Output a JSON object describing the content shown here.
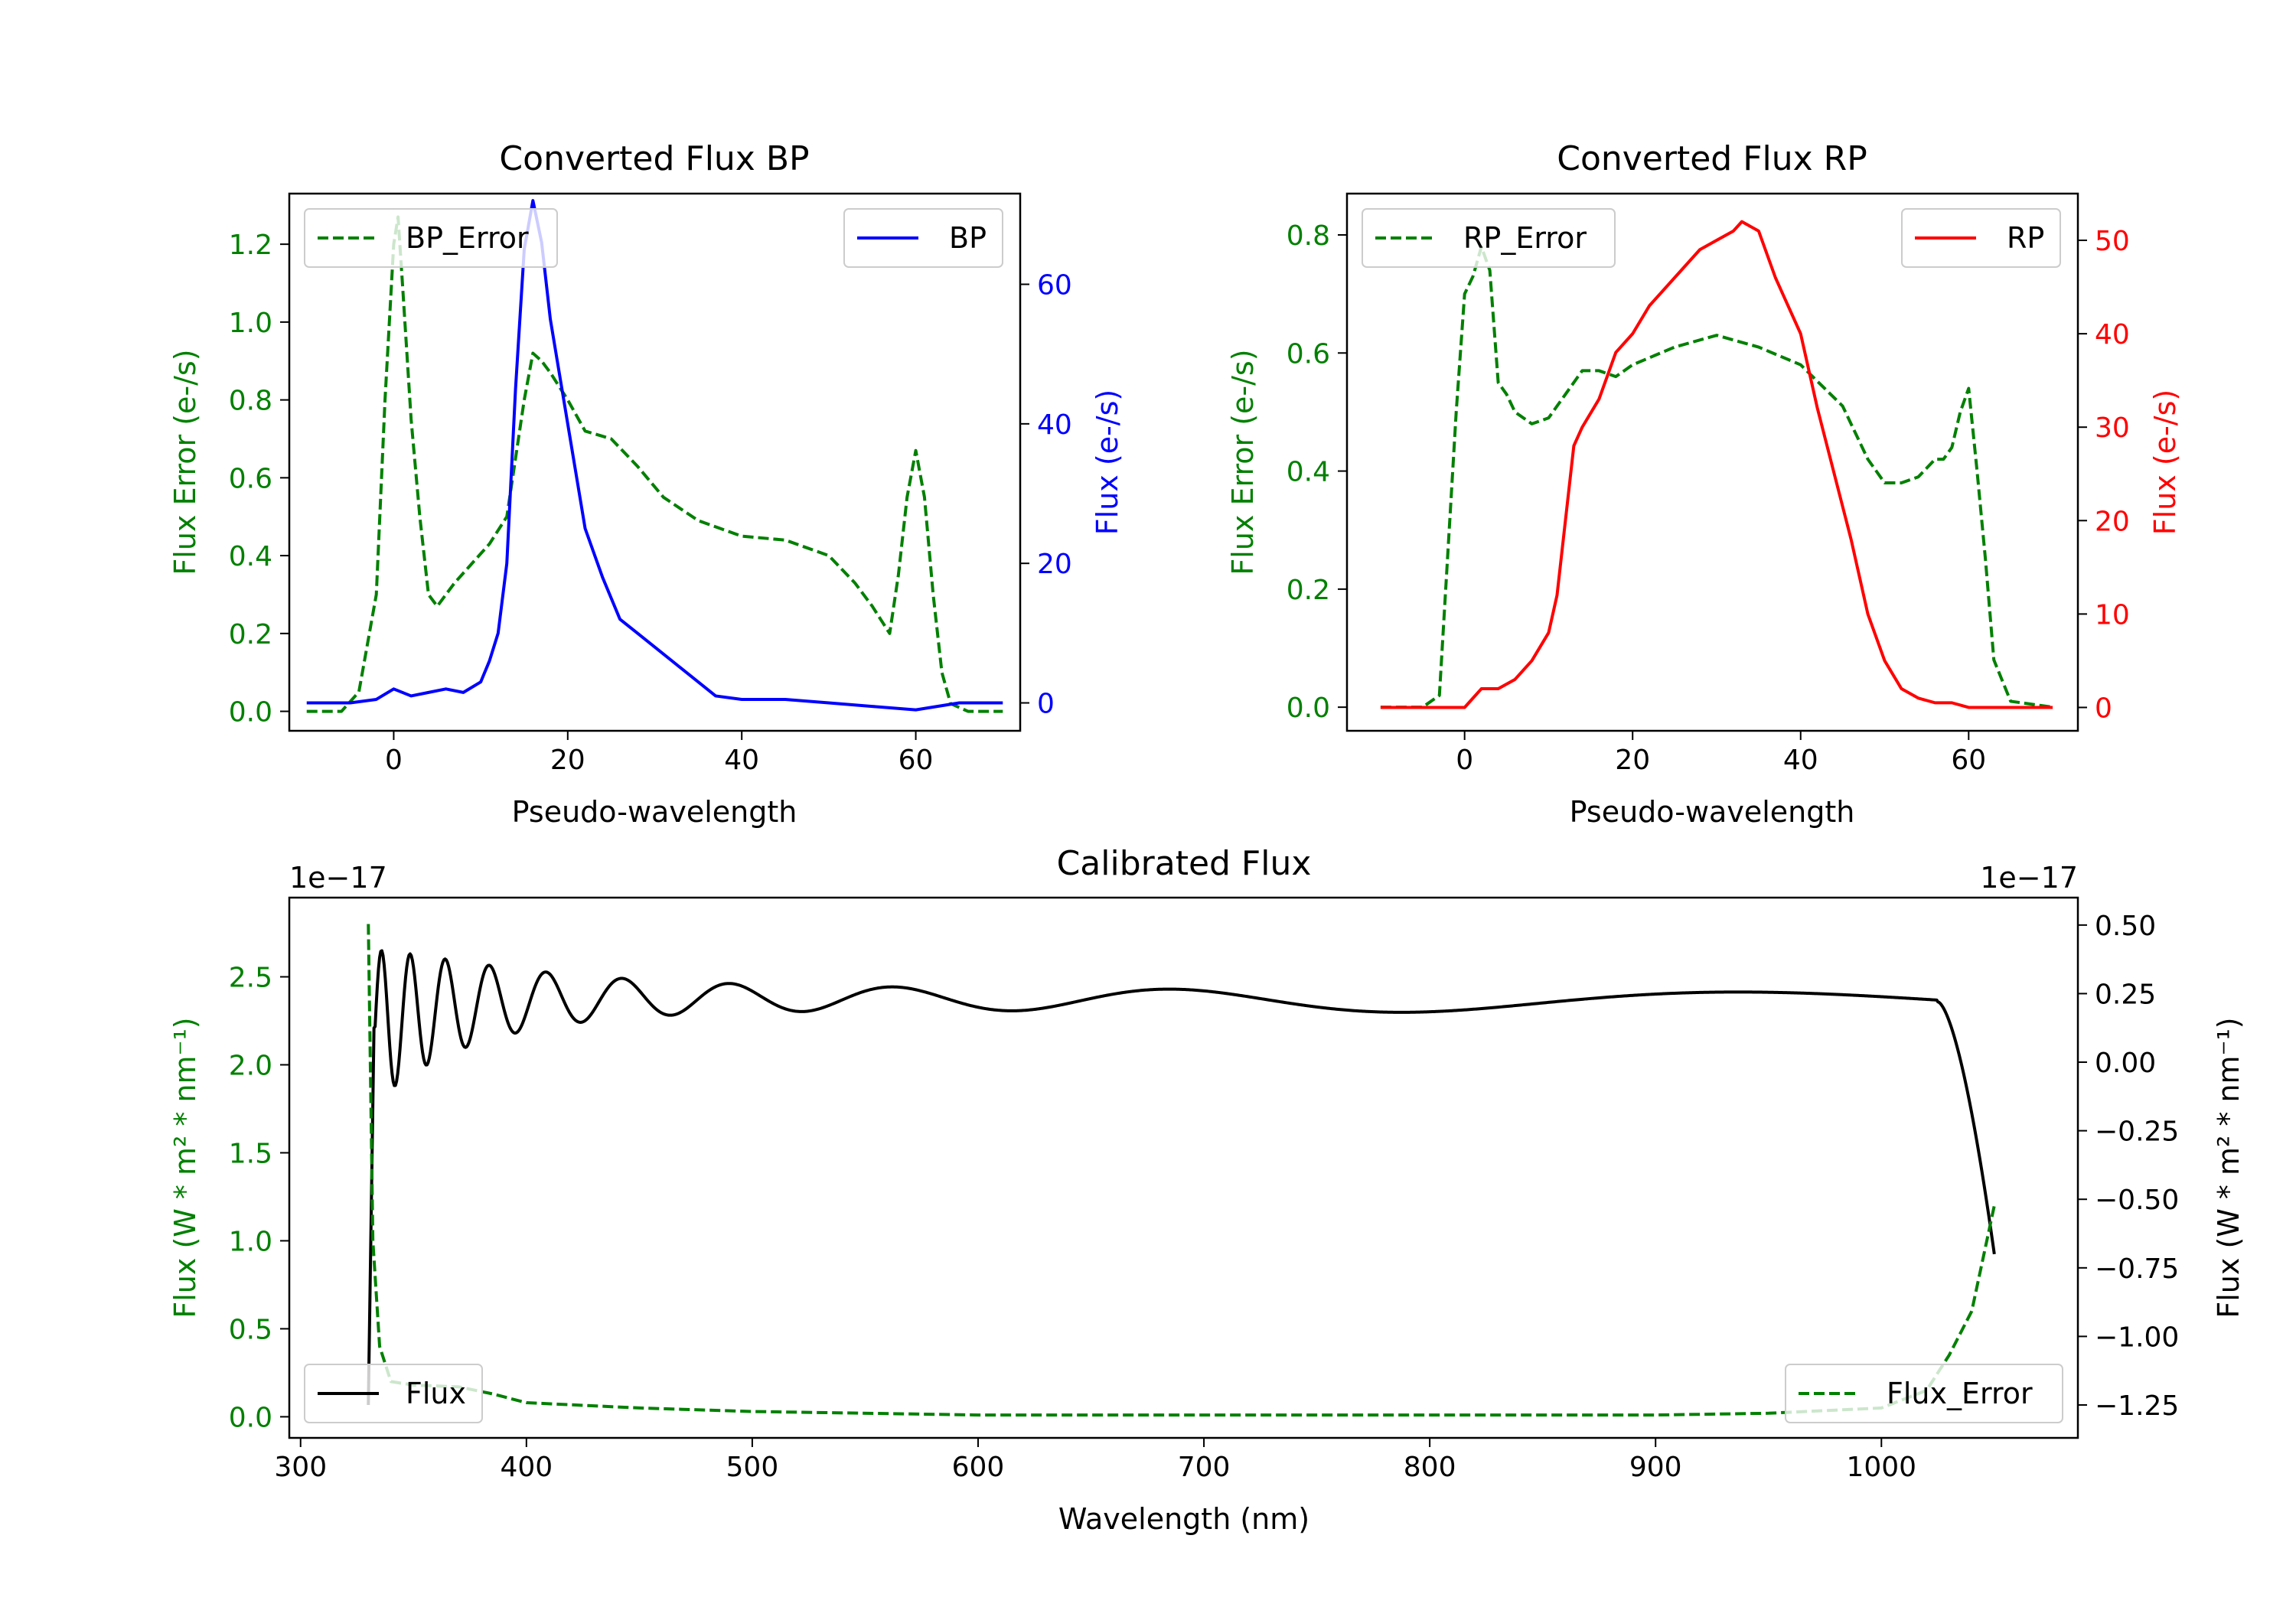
{
  "colors": {
    "green": "#008000",
    "blue": "#0000ff",
    "red": "#ff0000",
    "black": "#000000"
  },
  "chart_data": [
    {
      "type": "line",
      "title": "Converted Flux BP",
      "xlabel": "Pseudo-wavelength",
      "ylabel_left": "Flux Error (e-/s)",
      "ylabel_right": "Flux (e-/s)",
      "xlim": [
        -12,
        72
      ],
      "ylim_left": [
        -0.05,
        1.33
      ],
      "ylim_right": [
        -4,
        73
      ],
      "xticks": [
        "0",
        "20",
        "40",
        "60"
      ],
      "yticks_left": [
        "0.0",
        "0.2",
        "0.4",
        "0.6",
        "0.8",
        "1.0",
        "1.2"
      ],
      "yticks_right": [
        "0",
        "20",
        "40",
        "60"
      ],
      "legend_left": "BP_Error",
      "legend_right": "BP",
      "series": [
        {
          "name": "BP_Error",
          "axis": "left",
          "style": "dashed",
          "color": "#008000",
          "x": [
            -10,
            -6,
            -4,
            -2,
            -1,
            0,
            0.5,
            1,
            2,
            3,
            4,
            5,
            7,
            9,
            11,
            13,
            14,
            15,
            16,
            17,
            18,
            20,
            22,
            25,
            28,
            31,
            35,
            40,
            45,
            50,
            53,
            55,
            57,
            58,
            59,
            60,
            61,
            62,
            63,
            64,
            66,
            70
          ],
          "y": [
            0,
            0,
            0.05,
            0.3,
            0.8,
            1.2,
            1.27,
            1.1,
            0.75,
            0.5,
            0.3,
            0.27,
            0.33,
            0.38,
            0.43,
            0.5,
            0.65,
            0.8,
            0.92,
            0.9,
            0.87,
            0.8,
            0.72,
            0.7,
            0.63,
            0.55,
            0.49,
            0.45,
            0.44,
            0.4,
            0.33,
            0.27,
            0.2,
            0.35,
            0.55,
            0.67,
            0.55,
            0.3,
            0.1,
            0.02,
            0,
            0
          ]
        },
        {
          "name": "BP",
          "axis": "right",
          "style": "solid",
          "color": "#0000ff",
          "x": [
            -10,
            -5,
            -2,
            0,
            2,
            4,
            6,
            8,
            10,
            11,
            12,
            13,
            14,
            15,
            16,
            17,
            18,
            20,
            22,
            24,
            26,
            28,
            30,
            33,
            35,
            37,
            40,
            45,
            50,
            55,
            60,
            65,
            70
          ],
          "y": [
            0,
            0,
            0.5,
            2,
            1,
            1.5,
            2,
            1.5,
            3,
            6,
            10,
            20,
            45,
            65,
            72,
            66,
            55,
            40,
            25,
            18,
            12,
            10,
            8,
            5,
            3,
            1,
            0.5,
            0.5,
            0,
            -0.5,
            -1,
            0,
            0
          ]
        }
      ]
    },
    {
      "type": "line",
      "title": "Converted Flux RP",
      "xlabel": "Pseudo-wavelength",
      "ylabel_left": "Flux Error (e-/s)",
      "ylabel_right": "Flux (e-/s)",
      "xlim": [
        -14,
        73
      ],
      "ylim_left": [
        -0.04,
        0.87
      ],
      "ylim_right": [
        -2.5,
        55
      ],
      "xticks": [
        "0",
        "20",
        "40",
        "60"
      ],
      "yticks_left": [
        "0.0",
        "0.2",
        "0.4",
        "0.6",
        "0.8"
      ],
      "yticks_right": [
        "0",
        "10",
        "20",
        "30",
        "40",
        "50"
      ],
      "legend_left": "RP_Error",
      "legend_right": "RP",
      "series": [
        {
          "name": "RP_Error",
          "axis": "left",
          "style": "dashed",
          "color": "#008000",
          "x": [
            -10,
            -5,
            -3,
            -1,
            0,
            1,
            2,
            3,
            4,
            5,
            6,
            8,
            10,
            12,
            14,
            16,
            18,
            20,
            25,
            30,
            35,
            40,
            45,
            48,
            50,
            52,
            54,
            56,
            57,
            58,
            59,
            60,
            61,
            62,
            63,
            65,
            70
          ],
          "y": [
            0,
            0,
            0.02,
            0.5,
            0.7,
            0.73,
            0.78,
            0.74,
            0.55,
            0.53,
            0.5,
            0.48,
            0.49,
            0.53,
            0.57,
            0.57,
            0.56,
            0.58,
            0.61,
            0.63,
            0.61,
            0.58,
            0.51,
            0.42,
            0.38,
            0.38,
            0.39,
            0.42,
            0.42,
            0.44,
            0.5,
            0.54,
            0.4,
            0.25,
            0.08,
            0.01,
            0
          ],
          "note": ""
        },
        {
          "name": "RP",
          "axis": "right",
          "style": "solid",
          "color": "#ff0000",
          "x": [
            -10,
            -5,
            0,
            1,
            2,
            4,
            6,
            8,
            10,
            11,
            12,
            13,
            14,
            16,
            18,
            20,
            22,
            25,
            28,
            30,
            32,
            33,
            35,
            37,
            38,
            40,
            42,
            44,
            46,
            48,
            50,
            52,
            54,
            56,
            58,
            60,
            62,
            65,
            70
          ],
          "y": [
            0,
            0,
            0,
            1,
            2,
            2,
            3,
            5,
            8,
            12,
            20,
            28,
            30,
            33,
            38,
            40,
            43,
            46,
            49,
            50,
            51,
            52,
            51,
            46,
            44,
            40,
            32,
            25,
            18,
            10,
            5,
            2,
            1,
            0.5,
            0.5,
            0,
            0,
            0,
            0
          ]
        }
      ]
    },
    {
      "type": "line",
      "title": "Calibrated Flux",
      "xlabel": "Wavelength (nm)",
      "ylabel_left": "Flux (W * m² * nm⁻¹)",
      "ylabel_right": "Flux (W * m² * nm⁻¹)",
      "offset_text_left": "1e−17",
      "offset_text_right": "1e−17",
      "xlim": [
        295,
        1087
      ],
      "ylim_left": [
        -0.12,
        2.95
      ],
      "ylim_right": [
        -1.37,
        0.6
      ],
      "xticks": [
        "300",
        "400",
        "500",
        "600",
        "700",
        "800",
        "900",
        "1000"
      ],
      "yticks_left": [
        "0.0",
        "0.5",
        "1.0",
        "1.5",
        "2.0",
        "2.5"
      ],
      "yticks_right": [
        "−1.25",
        "−1.00",
        "−0.75",
        "−0.50",
        "−0.25",
        "0.00",
        "0.25",
        "0.50"
      ],
      "legend_left": "Flux",
      "legend_right": "Flux_Error",
      "series": [
        {
          "name": "Flux",
          "axis": "right",
          "style": "solid",
          "color": "#000000",
          "x_range": [
            330,
            1050
          ],
          "description": "damped oscillation near 0.25 with large ripples below 400 nm, dropping to -0.70 at the red end"
        },
        {
          "name": "Flux_Error",
          "axis": "left",
          "style": "dashed",
          "color": "#008000",
          "x": [
            330,
            332,
            335,
            340,
            350,
            370,
            385,
            400,
            450,
            500,
            600,
            700,
            800,
            900,
            950,
            1000,
            1020,
            1030,
            1040,
            1045,
            1050
          ],
          "y": [
            2.8,
            1.0,
            0.4,
            0.2,
            0.18,
            0.17,
            0.13,
            0.08,
            0.05,
            0.03,
            0.01,
            0.01,
            0.01,
            0.01,
            0.02,
            0.05,
            0.15,
            0.35,
            0.6,
            0.9,
            1.2
          ]
        }
      ]
    }
  ]
}
